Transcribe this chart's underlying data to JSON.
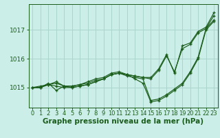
{
  "bg_color": "#cceee8",
  "grid_color": "#aad4cc",
  "line_color": "#1a5c1a",
  "xlabel": "Graphe pression niveau de la mer (hPa)",
  "xlabel_fontsize": 7.5,
  "ylabel_fontsize": 6.5,
  "tick_fontsize": 6,
  "xlim": [
    -0.5,
    23.5
  ],
  "ylim": [
    1014.3,
    1017.9
  ],
  "yticks": [
    1015,
    1016,
    1017
  ],
  "xticks": [
    0,
    1,
    2,
    3,
    4,
    5,
    6,
    7,
    8,
    9,
    10,
    11,
    12,
    13,
    14,
    15,
    16,
    17,
    18,
    19,
    20,
    21,
    22,
    23
  ],
  "series": [
    [
      1015.0,
      1015.05,
      1015.1,
      1015.05,
      1015.0,
      1015.0,
      1015.05,
      1015.1,
      1015.2,
      1015.3,
      1015.45,
      1015.5,
      1015.45,
      1015.4,
      1015.35,
      1015.3,
      1015.6,
      1016.1,
      1015.55,
      1016.35,
      1016.5,
      1016.9,
      1017.05,
      1017.5
    ],
    [
      1015.0,
      1015.0,
      1015.15,
      1014.9,
      1015.05,
      1015.05,
      1015.1,
      1015.15,
      1015.25,
      1015.3,
      1015.45,
      1015.5,
      1015.4,
      1015.35,
      1015.3,
      1014.55,
      1014.6,
      1014.75,
      1014.95,
      1015.15,
      1015.55,
      1016.05,
      1017.05,
      1017.35
    ],
    [
      1015.0,
      1015.0,
      1015.1,
      1015.2,
      1015.05,
      1015.05,
      1015.1,
      1015.2,
      1015.3,
      1015.35,
      1015.5,
      1015.55,
      1015.45,
      1015.4,
      1015.35,
      1015.35,
      1015.65,
      1016.15,
      1015.5,
      1016.45,
      1016.55,
      1016.95,
      1017.1,
      1017.6
    ],
    [
      1015.0,
      1015.0,
      1015.1,
      1015.15,
      1015.05,
      1015.0,
      1015.05,
      1015.1,
      1015.2,
      1015.3,
      1015.45,
      1015.5,
      1015.45,
      1015.3,
      1015.15,
      1014.5,
      1014.55,
      1014.7,
      1014.9,
      1015.1,
      1015.5,
      1016.0,
      1017.0,
      1017.3
    ]
  ]
}
